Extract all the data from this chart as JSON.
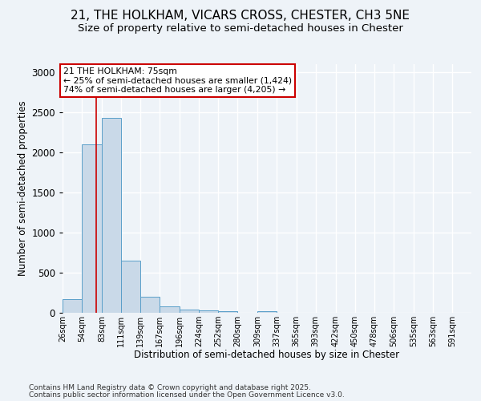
{
  "title_line1": "21, THE HOLKHAM, VICARS CROSS, CHESTER, CH3 5NE",
  "title_line2": "Size of property relative to semi-detached houses in Chester",
  "xlabel": "Distribution of semi-detached houses by size in Chester",
  "ylabel": "Number of semi-detached properties",
  "bar_color": "#c9d9e8",
  "bar_edge_color": "#5a9fc9",
  "bin_labels": [
    "26sqm",
    "54sqm",
    "83sqm",
    "111sqm",
    "139sqm",
    "167sqm",
    "196sqm",
    "224sqm",
    "252sqm",
    "280sqm",
    "309sqm",
    "337sqm",
    "365sqm",
    "393sqm",
    "422sqm",
    "450sqm",
    "478sqm",
    "506sqm",
    "535sqm",
    "563sqm",
    "591sqm"
  ],
  "bin_edges": [
    26,
    54,
    83,
    111,
    139,
    167,
    196,
    224,
    252,
    280,
    309,
    337,
    365,
    393,
    422,
    450,
    478,
    506,
    535,
    563,
    591
  ],
  "bar_heights": [
    170,
    2100,
    2430,
    650,
    200,
    80,
    45,
    35,
    25,
    0,
    25,
    0,
    0,
    0,
    0,
    0,
    0,
    0,
    0,
    0
  ],
  "red_line_x": 75,
  "ylim": [
    0,
    3100
  ],
  "annotation_title": "21 THE HOLKHAM: 75sqm",
  "annotation_line2": "← 25% of semi-detached houses are smaller (1,424)",
  "annotation_line3": "74% of semi-detached houses are larger (4,205) →",
  "annotation_box_color": "#ffffff",
  "annotation_border_color": "#cc0000",
  "footer_line1": "Contains HM Land Registry data © Crown copyright and database right 2025.",
  "footer_line2": "Contains public sector information licensed under the Open Government Licence v3.0.",
  "bg_color": "#eef3f8",
  "grid_color": "#ffffff",
  "title_fontsize": 11,
  "subtitle_fontsize": 9.5
}
